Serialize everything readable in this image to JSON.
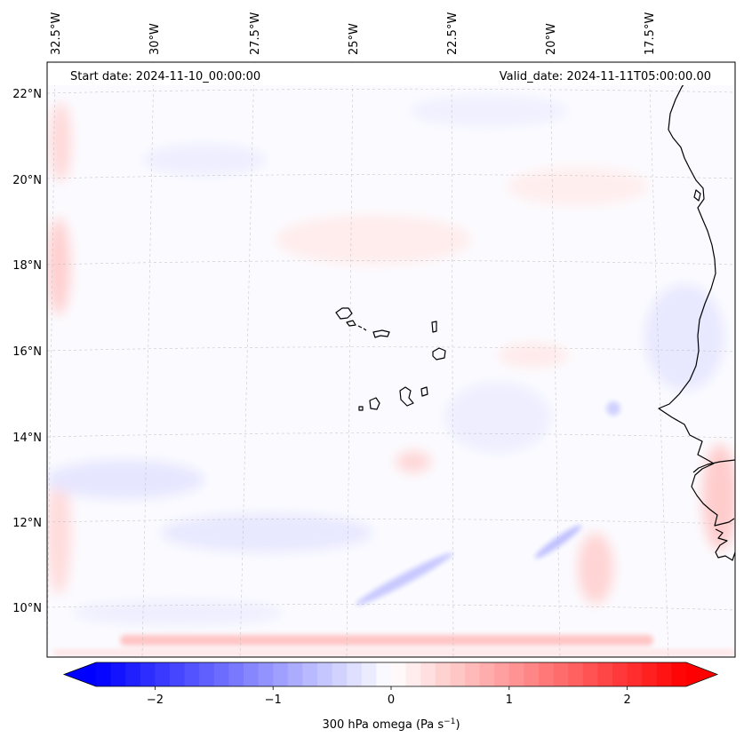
{
  "map": {
    "start_label": "Start date: 2024-11-10_00:00:00",
    "valid_label": "Valid_date: 2024-11-11T05:00:00.00",
    "lon_labels": [
      "32.5°W",
      "30°W",
      "27.5°W",
      "25°W",
      "22.5°W",
      "20°W",
      "17.5°W"
    ],
    "lat_labels": [
      "22°N",
      "20°N",
      "18°N",
      "16°N",
      "14°N",
      "12°N",
      "10°N"
    ]
  },
  "colorbar": {
    "label": "300 hPa omega (Pa s",
    "label_sup": "−1",
    "label_end": ")",
    "ticks": [
      "−2",
      "−1",
      "0",
      "1",
      "2"
    ],
    "tick_values": [
      -2,
      -1,
      0,
      1,
      2
    ],
    "range": [
      -2.5,
      2.5
    ],
    "cmap": "bwr",
    "extend": "both"
  },
  "colors": {
    "negative": "#0000ff",
    "zero": "#ffffff",
    "positive": "#ff0000",
    "coast": "#000000",
    "grid": "#bbbbbb"
  }
}
